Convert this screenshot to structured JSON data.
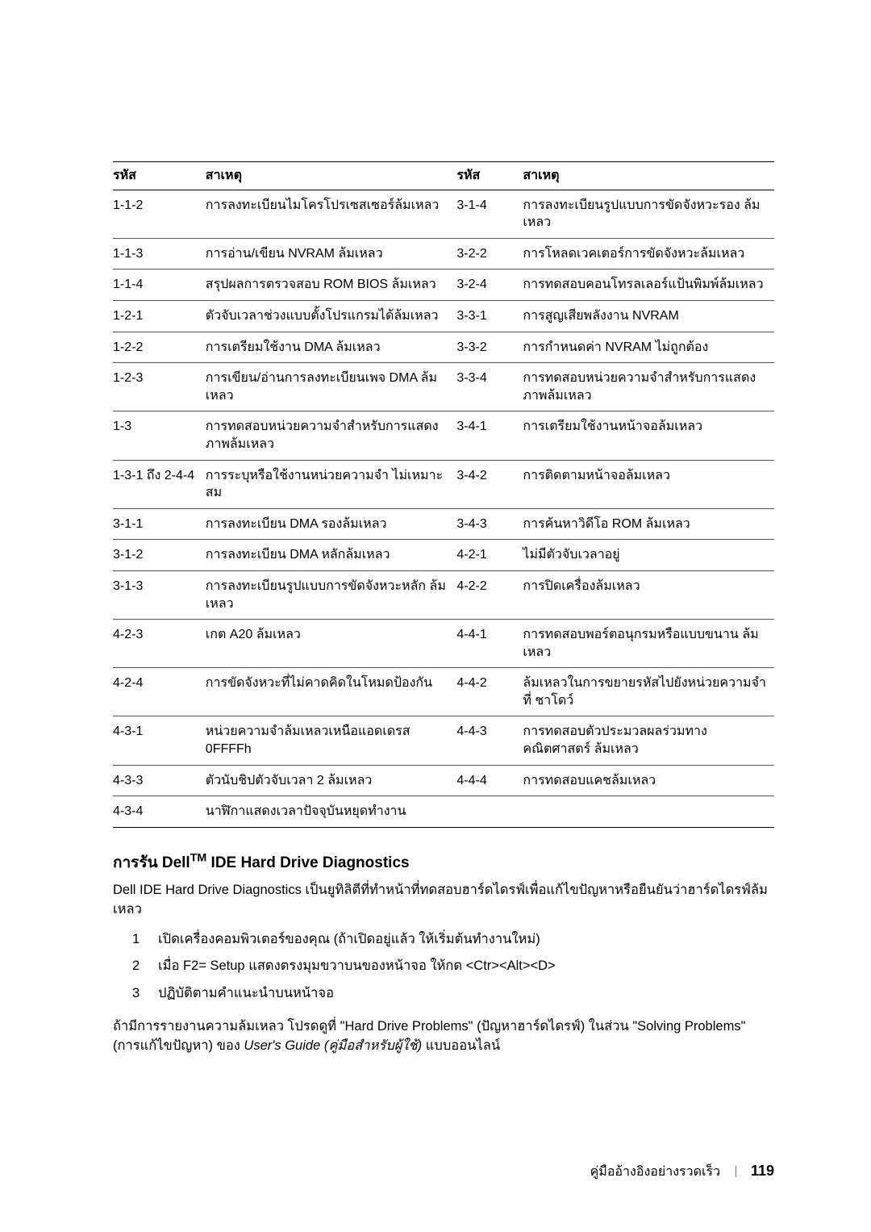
{
  "table": {
    "headers": {
      "code": "รหัส",
      "cause": "สาเหตุ"
    },
    "rows": [
      {
        "lc": "1-1-2",
        "ld": "การลงทะเบียนไมโครโปรเซสเซอร์ล้มเหลว",
        "rc": "3-1-4",
        "rd": "การลงทะเบียนรูปแบบการขัดจังหวะรอง ล้มเหลว"
      },
      {
        "lc": "1-1-3",
        "ld": "การอ่าน/เขียน NVRAM ล้มเหลว",
        "rc": "3-2-2",
        "rd": "การโหลดเวคเตอร์การขัดจังหวะล้มเหลว"
      },
      {
        "lc": "1-1-4",
        "ld": "สรุปผลการตรวจสอบ ROM BIOS ล้มเหลว",
        "rc": "3-2-4",
        "rd": "การทดสอบคอนโทรลเลอร์แป้นพิมพ์ล้มเหลว"
      },
      {
        "lc": "1-2-1",
        "ld": "ตัวจับเวลาช่วงแบบตั้งโปรแกรมได้ล้มเหลว",
        "rc": "3-3-1",
        "rd": "การสูญเสียพลังงาน NVRAM"
      },
      {
        "lc": "1-2-2",
        "ld": "การเตรียมใช้งาน DMA ล้มเหลว",
        "rc": "3-3-2",
        "rd": "การกำหนดค่า NVRAM ไม่ถูกต้อง"
      },
      {
        "lc": "1-2-3",
        "ld": "การเขียน/อ่านการลงทะเบียนเพจ DMA ล้มเหลว",
        "rc": "3-3-4",
        "rd": "การทดสอบหน่วยความจำสำหรับการแสดง ภาพล้มเหลว"
      },
      {
        "lc": "1-3",
        "ld": "การทดสอบหน่วยความจำสำหรับการแสดง ภาพล้มเหลว",
        "rc": "3-4-1",
        "rd": "การเตรียมใช้งานหน้าจอล้มเหลว"
      },
      {
        "lc": "1-3-1 ถึง 2-4-4",
        "ld": "การระบุหรือใช้งานหน่วยความจำ ไม่เหมาะสม",
        "rc": "3-4-2",
        "rd": "การติดตามหน้าจอล้มเหลว"
      },
      {
        "lc": "3-1-1",
        "ld": "การลงทะเบียน DMA รองล้มเหลว",
        "rc": "3-4-3",
        "rd": "การค้นหาวิดีโอ ROM ล้มเหลว"
      },
      {
        "lc": "3-1-2",
        "ld": "การลงทะเบียน DMA หลักล้มเหลว",
        "rc": "4-2-1",
        "rd": "ไม่มีตัวจับเวลาอยู่"
      },
      {
        "lc": "3-1-3",
        "ld": "การลงทะเบียนรูปแบบการขัดจังหวะหลัก ล้มเหลว",
        "rc": "4-2-2",
        "rd": "การปิดเครื่องล้มเหลว"
      },
      {
        "lc": "4-2-3",
        "ld": "เกต A20 ล้มเหลว",
        "rc": "4-4-1",
        "rd": "การทดสอบพอร์ตอนุกรมหรือแบบขนาน ล้มเหลว"
      },
      {
        "lc": "4-2-4",
        "ld": "การขัดจังหวะที่ไม่คาดคิดในโหมดป้องกัน",
        "rc": "4-4-2",
        "rd": "ล้มเหลวในการขยายรหัสไปยังหน่วยความจำที่ ชาโดว์"
      },
      {
        "lc": "4-3-1",
        "ld": "หน่วยความจำล้มเหลวเหนือแอดเดรส 0FFFFh",
        "rc": "4-4-3",
        "rd": "การทดสอบตัวประมวลผลร่วมทางคณิตศาสตร์ ล้มเหลว"
      },
      {
        "lc": "4-3-3",
        "ld": "ตัวนับชิปตัวจับเวลา 2 ล้มเหลว",
        "rc": "4-4-4",
        "rd": "การทดสอบแคชล้มเหลว"
      },
      {
        "lc": "4-3-4",
        "ld": "นาฬิกาแสดงเวลาปัจจุบันหยุดทำงาน",
        "rc": "",
        "rd": ""
      }
    ]
  },
  "section": {
    "title_prefix": "การรัน Dell",
    "title_suffix": " IDE Hard Drive Diagnostics",
    "intro": "Dell IDE Hard Drive Diagnostics เป็นยูทิลิตีที่ทำหน้าที่ทดสอบฮาร์ดไดรฟ์เพื่อแก้ไขปัญหาหรือยืนยันว่าฮาร์ดไดรฟ์ล้มเหลว",
    "steps": [
      "เปิดเครื่องคอมพิวเตอร์ของคุณ (ถ้าเปิดอยู่แล้ว ให้เริ่มต้นทำงานใหม่)",
      "เมื่อ F2= Setup แสดงตรงมุมขวาบนของหน้าจอ ให้กด <Ctr><Alt><D>",
      "ปฏิบัติตามคำแนะนำบนหน้าจอ"
    ],
    "closing_a": "ถ้ามีการรายงานความล้มเหลว โปรดดูที่ \"Hard Drive Problems\" (ปัญหาฮาร์ดไดรฟ์) ในส่วน \"Solving Problems\" (การแก้ไขปัญหา) ของ ",
    "closing_i": "User's Guide (คู่มือสำหรับผู้ใช้)",
    "closing_b": " แบบออนไลน์"
  },
  "footer": {
    "title": "คู่มืออ้างอิงอย่างรวดเร็ว",
    "page": "119"
  }
}
